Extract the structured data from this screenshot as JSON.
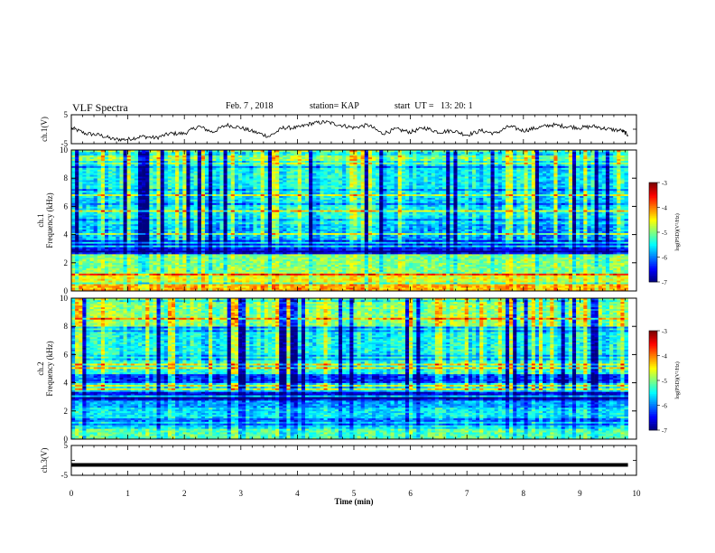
{
  "header": {
    "title": "VLF Spectra",
    "date": "Feb. 7 , 2018",
    "station": "station= KAP",
    "start": "start  UT =   13: 20: 1"
  },
  "chart_data": [
    {
      "type": "line",
      "panel": "ch1-waveform",
      "ylabel": "ch.1(V)",
      "ylim": [
        -5,
        5
      ],
      "yticks": [
        "5",
        "-5"
      ],
      "xlim": [
        0,
        10
      ],
      "series": [
        {
          "x": [
            0,
            0.25,
            0.5,
            0.75,
            1,
            1.25,
            1.5,
            1.75,
            2,
            2.25,
            2.5,
            2.75,
            3,
            3.25,
            3.5,
            3.75,
            4,
            4.25,
            4.5,
            4.75,
            5,
            5.25,
            5.5,
            5.75,
            6,
            6.25,
            6.5,
            6.75,
            7,
            7.25,
            7.5,
            7.75,
            8,
            8.25,
            8.5,
            8.75,
            9,
            9.25,
            9.5,
            9.75,
            9.85
          ],
          "y": [
            0.5,
            -1.5,
            -2.0,
            -3.5,
            -3.5,
            -2.5,
            -3.0,
            -1.5,
            -1.5,
            1.0,
            -1.0,
            1.5,
            0.5,
            -1.0,
            -2.5,
            0.5,
            0.5,
            2.0,
            2.5,
            1.5,
            0.5,
            1.5,
            -1.5,
            0.0,
            -1.0,
            0.5,
            -1.0,
            -0.5,
            -2.0,
            -0.5,
            -1.5,
            1.0,
            -0.5,
            0.5,
            1.5,
            1.0,
            0.5,
            1.0,
            0.0,
            -0.5,
            -2.0
          ]
        }
      ]
    },
    {
      "type": "heatmap",
      "panel": "ch1-spectrogram",
      "ylabel_line1": "ch.1",
      "ylabel_line2": "Frequency  (kHz)",
      "ylim": [
        0,
        10
      ],
      "yticks": [
        "0",
        "2",
        "4",
        "6",
        "8",
        "10"
      ],
      "xlim": [
        0,
        10
      ],
      "data_end_min": 9.85,
      "colorbar": {
        "label": "log(PSD)(V²/Hz)",
        "range": [
          -7,
          -3
        ],
        "ticks": [
          "-3",
          "-4",
          "-5",
          "-6",
          "-7"
        ]
      },
      "bands": [
        {
          "from": 0,
          "to": 0.5,
          "level": -4.2
        },
        {
          "from": 0.5,
          "to": 1.2,
          "level": -4.6
        },
        {
          "from": 1.2,
          "to": 2.6,
          "level": -5.0
        },
        {
          "from": 2.6,
          "to": 3.6,
          "level": -6.5
        },
        {
          "from": 3.6,
          "to": 4.8,
          "level": -5.8
        },
        {
          "from": 4.8,
          "to": 6.0,
          "level": -5.5
        },
        {
          "from": 6.0,
          "to": 7.0,
          "level": -5.6
        },
        {
          "from": 7.0,
          "to": 9.0,
          "level": -5.5
        },
        {
          "from": 9.0,
          "to": 10.0,
          "level": -5.0
        }
      ]
    },
    {
      "type": "heatmap",
      "panel": "ch2-spectrogram",
      "ylabel_line1": "ch.2",
      "ylabel_line2": "Frequency  (kHz)",
      "ylim": [
        0,
        10
      ],
      "yticks": [
        "0",
        "2",
        "4",
        "6",
        "8",
        "10"
      ],
      "xlim": [
        0,
        10
      ],
      "data_end_min": 9.85,
      "colorbar": {
        "label": "log(PSD)(V²/Hz)",
        "range": [
          -7,
          -3
        ],
        "ticks": [
          "-3",
          "-4",
          "-5",
          "-6",
          "-7"
        ]
      },
      "bands": [
        {
          "from": 0,
          "to": 0.8,
          "level": -5.2
        },
        {
          "from": 0.8,
          "to": 2.2,
          "level": -5.6
        },
        {
          "from": 2.2,
          "to": 2.8,
          "level": -5.9
        },
        {
          "from": 2.8,
          "to": 3.4,
          "level": -6.6
        },
        {
          "from": 3.4,
          "to": 4.0,
          "level": -5.6
        },
        {
          "from": 4.0,
          "to": 4.6,
          "level": -6.4
        },
        {
          "from": 4.6,
          "to": 6.0,
          "level": -5.4
        },
        {
          "from": 6.0,
          "to": 8.0,
          "level": -5.5
        },
        {
          "from": 8.0,
          "to": 10.0,
          "level": -5.0
        }
      ]
    },
    {
      "type": "line",
      "panel": "ch3-waveform",
      "ylabel": "ch.3(V)",
      "ylim": [
        -5,
        5
      ],
      "yticks": [
        "5",
        "-5"
      ],
      "xlim": [
        0,
        10
      ],
      "xlabel": "Time  (min)",
      "xticks": [
        "0",
        "1",
        "2",
        "3",
        "4",
        "5",
        "6",
        "7",
        "8",
        "9",
        "10"
      ],
      "series": [
        {
          "x": [
            0,
            9.85
          ],
          "y": [
            -1.5,
            -1.5
          ]
        }
      ]
    }
  ]
}
